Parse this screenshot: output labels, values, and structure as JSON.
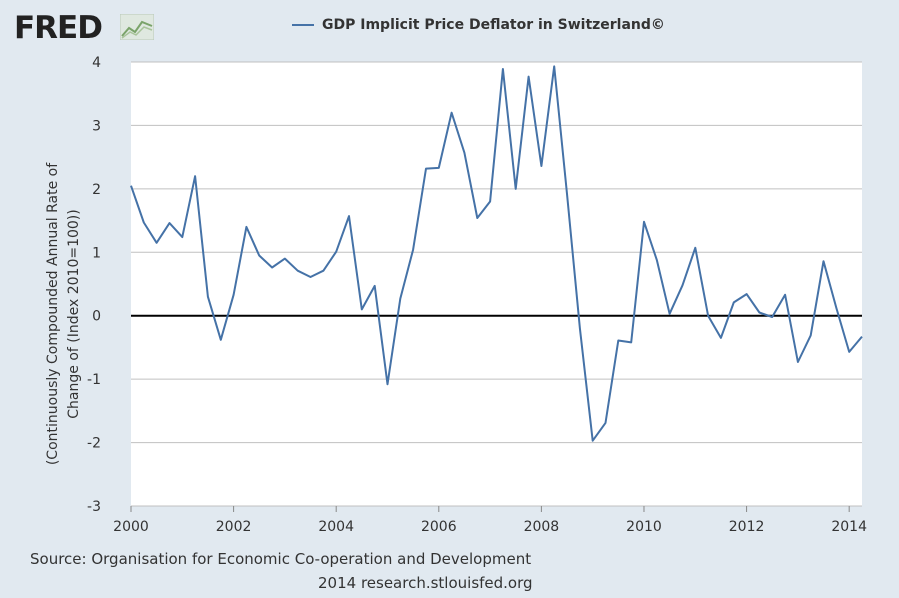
{
  "header": {
    "logo_text": "FRED",
    "logo_icon": "fred-chart-icon"
  },
  "colors": {
    "background": "#e1e9f0",
    "plot_bg": "#ffffff",
    "series": "#4572a7",
    "zero_line": "#000000",
    "grid": "#c0c0c0"
  },
  "chart_data": {
    "type": "line",
    "title": "",
    "ylabel": "(Continuously Compounded Annual Rate of Change of (Index 2010=100))",
    "xlabel": "",
    "ylim": [
      -3,
      4
    ],
    "xlim": [
      2000,
      2014.25
    ],
    "x_ticks": [
      2000,
      2002,
      2004,
      2006,
      2008,
      2010,
      2012,
      2014
    ],
    "y_ticks": [
      -3,
      -2,
      -1,
      0,
      1,
      2,
      3,
      4
    ],
    "grid": true,
    "legend_position": "top",
    "series": [
      {
        "name": "GDP Implicit Price Deflator in Switzerland©",
        "x": [
          2000.0,
          2000.25,
          2000.5,
          2000.75,
          2001.0,
          2001.25,
          2001.5,
          2001.75,
          2002.0,
          2002.25,
          2002.5,
          2002.75,
          2003.0,
          2003.25,
          2003.5,
          2003.75,
          2004.0,
          2004.25,
          2004.5,
          2004.75,
          2005.0,
          2005.25,
          2005.5,
          2005.75,
          2006.0,
          2006.25,
          2006.5,
          2006.75,
          2007.0,
          2007.25,
          2007.5,
          2007.75,
          2008.0,
          2008.25,
          2008.5,
          2008.75,
          2009.0,
          2009.25,
          2009.5,
          2009.75,
          2010.0,
          2010.25,
          2010.5,
          2010.75,
          2011.0,
          2011.25,
          2011.5,
          2011.75,
          2012.0,
          2012.25,
          2012.5,
          2012.75,
          2013.0,
          2013.25,
          2013.5,
          2013.75,
          2014.0,
          2014.25
        ],
        "values": [
          2.05,
          1.47,
          1.15,
          1.46,
          1.24,
          2.2,
          0.3,
          -0.38,
          0.33,
          1.4,
          0.95,
          0.76,
          0.9,
          0.71,
          0.61,
          0.71,
          1.01,
          1.57,
          0.1,
          0.47,
          -1.08,
          0.27,
          1.04,
          2.32,
          2.33,
          3.2,
          2.57,
          1.54,
          1.8,
          3.89,
          2.0,
          3.77,
          2.36,
          3.93,
          1.92,
          -0.2,
          -1.97,
          -1.69,
          -0.39,
          -0.42,
          1.48,
          0.88,
          0.03,
          0.48,
          1.07,
          0.0,
          -0.35,
          0.21,
          0.34,
          0.05,
          -0.02,
          0.33,
          -0.73,
          -0.31,
          0.86,
          0.12,
          -0.57,
          -0.33
        ]
      }
    ]
  },
  "source": "Source: Organisation for Economic Co-operation and Development",
  "copyright": "2014 research.stlouisfed.org"
}
